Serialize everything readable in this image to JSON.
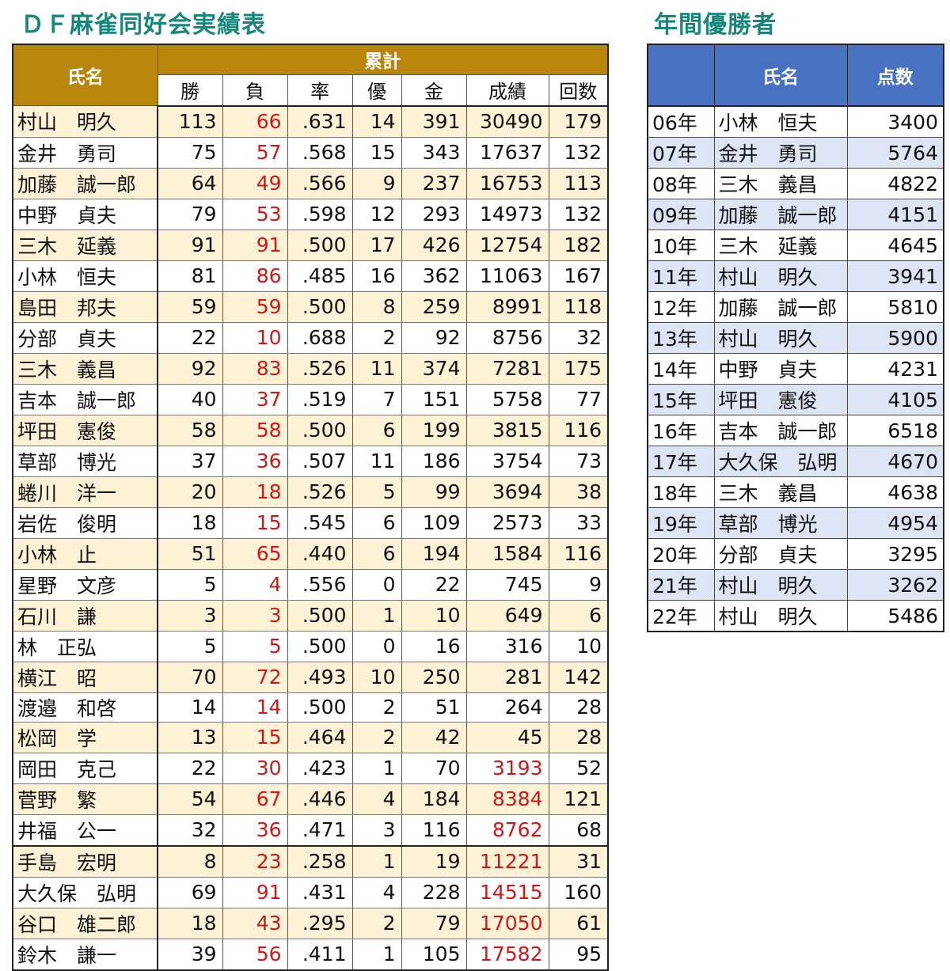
{
  "titles": {
    "main": "ＤＦ麻雀同好会実績表",
    "yearly": "年間優勝者"
  },
  "records": {
    "header_name": "氏名",
    "header_group": "累計",
    "columns": [
      "勝",
      "負",
      "率",
      "優",
      "金",
      "成績",
      "回数"
    ],
    "rows": [
      {
        "name": "村山　明久",
        "win": "113",
        "loss": "66",
        "rate": ".631",
        "yu": "14",
        "kin": "391",
        "score": "30490",
        "count": "179"
      },
      {
        "name": "金井　勇司",
        "win": "75",
        "loss": "57",
        "rate": ".568",
        "yu": "15",
        "kin": "343",
        "score": "17637",
        "count": "132"
      },
      {
        "name": "加藤　誠一郎",
        "win": "64",
        "loss": "49",
        "rate": ".566",
        "yu": "9",
        "kin": "237",
        "score": "16753",
        "count": "113"
      },
      {
        "name": "中野　貞夫",
        "win": "79",
        "loss": "53",
        "rate": ".598",
        "yu": "12",
        "kin": "293",
        "score": "14973",
        "count": "132"
      },
      {
        "name": "三木　延義",
        "win": "91",
        "loss": "91",
        "rate": ".500",
        "yu": "17",
        "kin": "426",
        "score": "12754",
        "count": "182"
      },
      {
        "name": "小林　恒夫",
        "win": "81",
        "loss": "86",
        "rate": ".485",
        "yu": "16",
        "kin": "362",
        "score": "11063",
        "count": "167"
      },
      {
        "name": "島田　邦夫",
        "win": "59",
        "loss": "59",
        "rate": ".500",
        "yu": "8",
        "kin": "259",
        "score": "8991",
        "count": "118"
      },
      {
        "name": "分部　貞夫",
        "win": "22",
        "loss": "10",
        "rate": ".688",
        "yu": "2",
        "kin": "92",
        "score": "8756",
        "count": "32"
      },
      {
        "name": "三木　義昌",
        "win": "92",
        "loss": "83",
        "rate": ".526",
        "yu": "11",
        "kin": "374",
        "score": "7281",
        "count": "175"
      },
      {
        "name": "吉本　誠一郎",
        "win": "40",
        "loss": "37",
        "rate": ".519",
        "yu": "7",
        "kin": "151",
        "score": "5758",
        "count": "77"
      },
      {
        "name": "坪田　憲俊",
        "win": "58",
        "loss": "58",
        "rate": ".500",
        "yu": "6",
        "kin": "199",
        "score": "3815",
        "count": "116"
      },
      {
        "name": "草部　博光",
        "win": "37",
        "loss": "36",
        "rate": ".507",
        "yu": "11",
        "kin": "186",
        "score": "3754",
        "count": "73"
      },
      {
        "name": "蜷川　洋一",
        "win": "20",
        "loss": "18",
        "rate": ".526",
        "yu": "5",
        "kin": "99",
        "score": "3694",
        "count": "38"
      },
      {
        "name": "岩佐　俊明",
        "win": "18",
        "loss": "15",
        "rate": ".545",
        "yu": "6",
        "kin": "109",
        "score": "2573",
        "count": "33"
      },
      {
        "name": "小林　止",
        "win": "51",
        "loss": "65",
        "rate": ".440",
        "yu": "6",
        "kin": "194",
        "score": "1584",
        "count": "116"
      },
      {
        "name": "星野　文彦",
        "win": "5",
        "loss": "4",
        "rate": ".556",
        "yu": "0",
        "kin": "22",
        "score": "745",
        "count": "9"
      },
      {
        "name": "石川　謙",
        "win": "3",
        "loss": "3",
        "rate": ".500",
        "yu": "1",
        "kin": "10",
        "score": "649",
        "count": "6"
      },
      {
        "name": "林　正弘",
        "win": "5",
        "loss": "5",
        "rate": ".500",
        "yu": "0",
        "kin": "16",
        "score": "316",
        "count": "10"
      },
      {
        "name": "横江　昭",
        "win": "70",
        "loss": "72",
        "rate": ".493",
        "yu": "10",
        "kin": "250",
        "score": "281",
        "count": "142"
      },
      {
        "name": "渡邉　和啓",
        "win": "14",
        "loss": "14",
        "rate": ".500",
        "yu": "2",
        "kin": "51",
        "score": "264",
        "count": "28"
      },
      {
        "name": "松岡　学",
        "win": "13",
        "loss": "15",
        "rate": ".464",
        "yu": "2",
        "kin": "42",
        "score": "45",
        "count": "28"
      },
      {
        "name": "岡田　克己",
        "win": "22",
        "loss": "30",
        "rate": ".423",
        "yu": "1",
        "kin": "70",
        "score": "3193",
        "count": "52"
      },
      {
        "name": "菅野　繁",
        "win": "54",
        "loss": "67",
        "rate": ".446",
        "yu": "4",
        "kin": "184",
        "score": "8384",
        "count": "121"
      },
      {
        "name": "井福　公一",
        "win": "32",
        "loss": "36",
        "rate": ".471",
        "yu": "3",
        "kin": "116",
        "score": "8762",
        "count": "68"
      },
      {
        "name": "手島　宏明",
        "win": "8",
        "loss": "23",
        "rate": ".258",
        "yu": "1",
        "kin": "19",
        "score": "11221",
        "count": "31"
      },
      {
        "name": "大久保　弘明",
        "win": "69",
        "loss": "91",
        "rate": ".431",
        "yu": "4",
        "kin": "228",
        "score": "14515",
        "count": "160"
      },
      {
        "name": "谷口　雄二郎",
        "win": "18",
        "loss": "43",
        "rate": ".295",
        "yu": "2",
        "kin": "79",
        "score": "17050",
        "count": "61"
      },
      {
        "name": "鈴木　謙一",
        "win": "39",
        "loss": "56",
        "rate": ".411",
        "yu": "1",
        "kin": "105",
        "score": "17582",
        "count": "95"
      }
    ]
  },
  "winners": {
    "headers": [
      "",
      "氏名",
      "点数"
    ],
    "rows": [
      {
        "year": "06年",
        "name": "小林　恒夫",
        "points": "3400"
      },
      {
        "year": "07年",
        "name": "金井　勇司",
        "points": "5764"
      },
      {
        "year": "08年",
        "name": "三木　義昌",
        "points": "4822"
      },
      {
        "year": "09年",
        "name": "加藤　誠一郎",
        "points": "4151"
      },
      {
        "year": "10年",
        "name": "三木　延義",
        "points": "4645"
      },
      {
        "year": "11年",
        "name": "村山　明久",
        "points": "3941"
      },
      {
        "year": "12年",
        "name": "加藤　誠一郎",
        "points": "5810"
      },
      {
        "year": "13年",
        "name": "村山　明久",
        "points": "5900"
      },
      {
        "year": "14年",
        "name": "中野　貞夫",
        "points": "4231"
      },
      {
        "year": "15年",
        "name": "坪田　憲俊",
        "points": "4105"
      },
      {
        "year": "16年",
        "name": "吉本　誠一郎",
        "points": "6518"
      },
      {
        "year": "17年",
        "name": "大久保　弘明",
        "points": "4670"
      },
      {
        "year": "18年",
        "name": "三木　義昌",
        "points": "4638"
      },
      {
        "year": "19年",
        "name": "草部　博光",
        "points": "4954"
      },
      {
        "year": "20年",
        "name": "分部　貞夫",
        "points": "3295"
      },
      {
        "year": "21年",
        "name": "村山　明久",
        "points": "3262"
      },
      {
        "year": "22年",
        "name": "村山　明久",
        "points": "5486"
      }
    ]
  },
  "colors": {
    "title": "#17877b",
    "gold_header": "#b8860b",
    "blue_header": "#4a72c2",
    "negative": "#d01818",
    "row_alt_main": "#fdf1d6",
    "row_alt_winners": "#dde4f3"
  }
}
